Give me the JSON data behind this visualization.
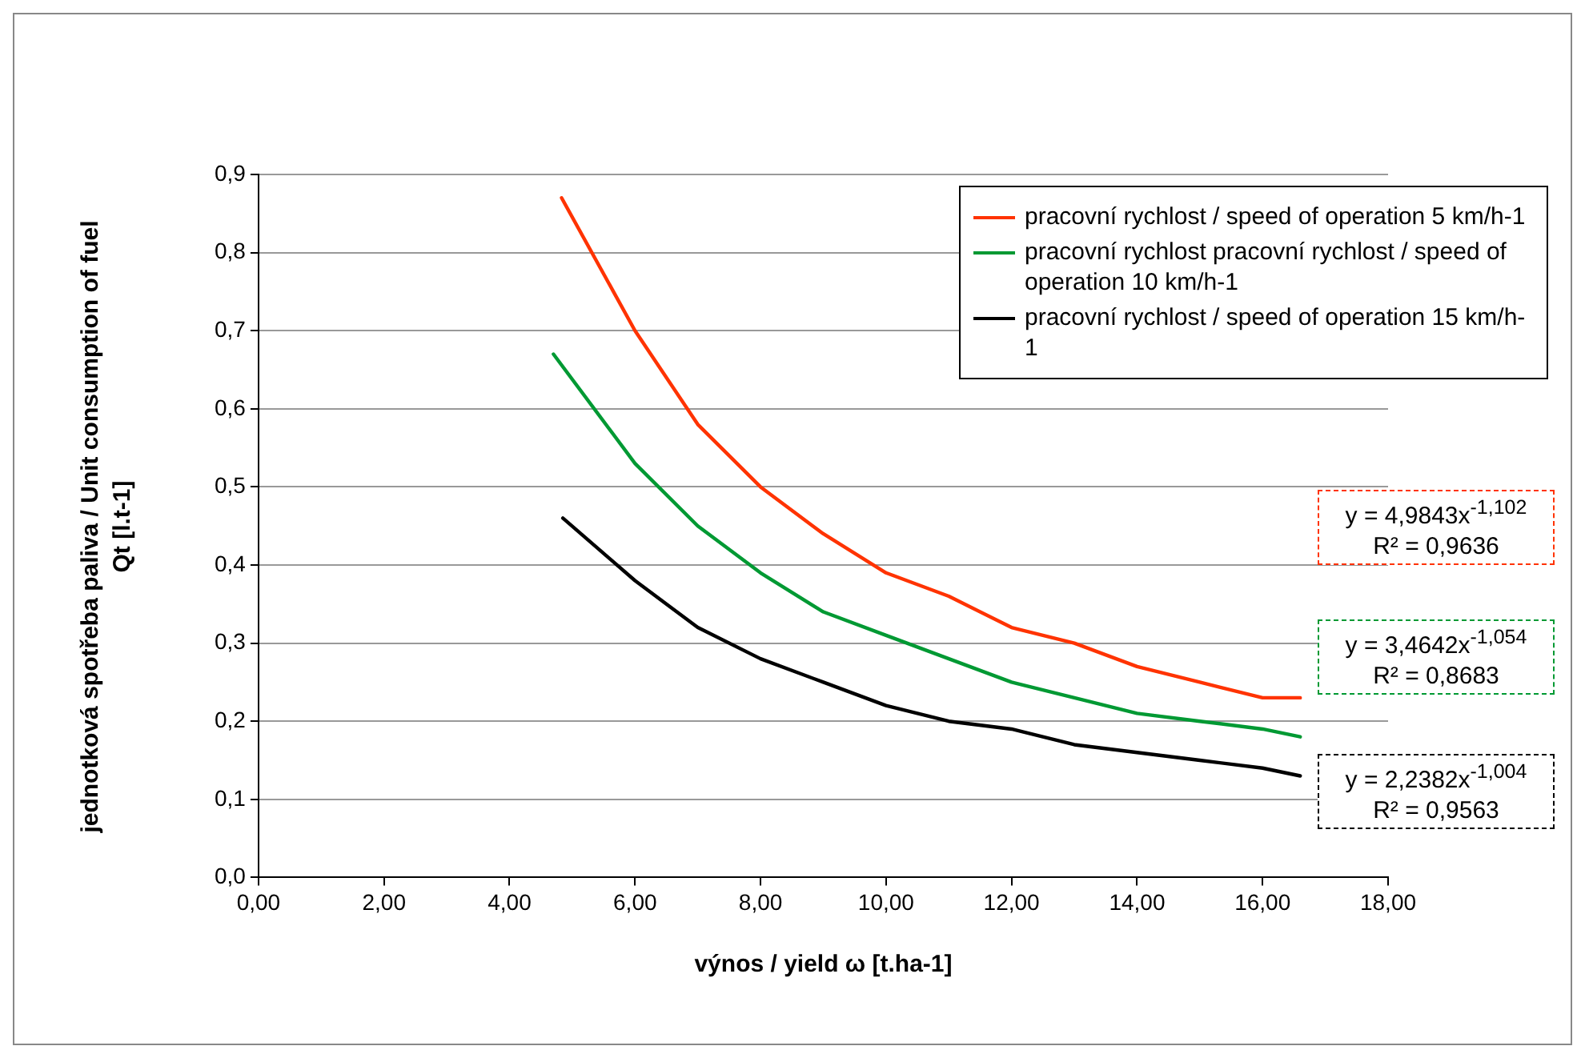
{
  "chart_data": {
    "type": "line",
    "xlabel": "výnos / yield ω [t.ha-1]",
    "ylabel": "jednotková spotřeba paliva / Unit consumption of fuel  Qt  [l.t-1]",
    "xlim": [
      0,
      18
    ],
    "xticks": [
      {
        "value": 0,
        "label": "0,00"
      },
      {
        "value": 2,
        "label": "2,00"
      },
      {
        "value": 4,
        "label": "4,00"
      },
      {
        "value": 6,
        "label": "6,00"
      },
      {
        "value": 8,
        "label": "8,00"
      },
      {
        "value": 10,
        "label": "10,00"
      },
      {
        "value": 12,
        "label": "12,00"
      },
      {
        "value": 14,
        "label": "14,00"
      },
      {
        "value": 16,
        "label": "16,00"
      },
      {
        "value": 18,
        "label": "18,00"
      }
    ],
    "ylim": [
      0,
      0.9
    ],
    "yticks": [
      {
        "value": 0,
        "label": "0,0"
      },
      {
        "value": 0.1,
        "label": "0,1"
      },
      {
        "value": 0.2,
        "label": "0,2"
      },
      {
        "value": 0.3,
        "label": "0,3"
      },
      {
        "value": 0.4,
        "label": "0,4"
      },
      {
        "value": 0.5,
        "label": "0,5"
      },
      {
        "value": 0.6,
        "label": "0,6"
      },
      {
        "value": 0.7,
        "label": "0,7"
      },
      {
        "value": 0.8,
        "label": "0,8"
      },
      {
        "value": 0.9,
        "label": "0,9"
      }
    ],
    "grid": "y",
    "legend": "top right",
    "marker": "none",
    "line_style": "solid",
    "series": [
      {
        "name": "pracovní rychlost / speed of operation 5 km/h-1",
        "color": "#ff3300",
        "x": [
          4.83,
          6,
          7,
          8,
          9,
          10,
          11,
          12,
          13,
          14,
          15,
          16,
          16.6
        ],
        "values": [
          0.87,
          0.7,
          0.58,
          0.5,
          0.44,
          0.39,
          0.36,
          0.32,
          0.3,
          0.27,
          0.25,
          0.23,
          0.23
        ]
      },
      {
        "name": "pracovní rychlost pracovní rychlost / speed of operation  10 km/h-1",
        "color": "#009933",
        "x": [
          4.7,
          6,
          7,
          8,
          9,
          10,
          11,
          12,
          13,
          14,
          15,
          16,
          16.6
        ],
        "values": [
          0.67,
          0.53,
          0.45,
          0.39,
          0.34,
          0.31,
          0.28,
          0.25,
          0.23,
          0.21,
          0.2,
          0.19,
          0.18
        ]
      },
      {
        "name": "pracovní rychlost / speed of operation 15 km/h-1",
        "color": "#000000",
        "x": [
          4.85,
          6,
          7,
          8,
          9,
          10,
          11,
          12,
          13,
          14,
          15,
          16,
          16.6
        ],
        "values": [
          0.46,
          0.38,
          0.32,
          0.28,
          0.25,
          0.22,
          0.2,
          0.19,
          0.17,
          0.16,
          0.15,
          0.14,
          0.13
        ]
      }
    ],
    "annotations": [
      "y = 4,9843x$^{-1,102}$\nR² = 0,9636",
      "y = 3,4642x$^{-1,054}$\nR² = 0,8683",
      "y = 2,2382x$^{-1,004}$\nR² = 0,9563"
    ]
  }
}
